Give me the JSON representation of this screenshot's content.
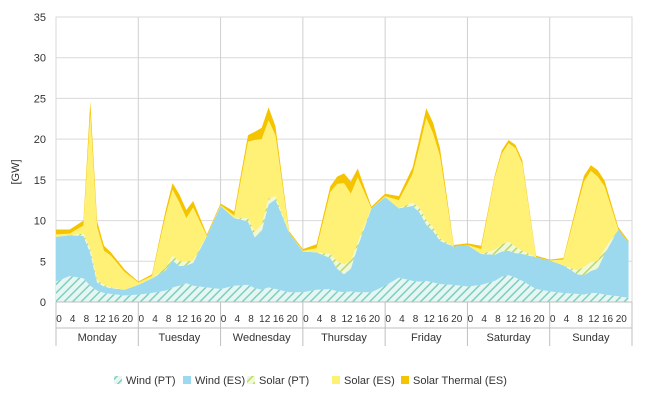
{
  "chart_data": {
    "type": "area",
    "stacked": true,
    "ylabel": "[GW]",
    "ylim": [
      0,
      35
    ],
    "yticks": [
      0,
      5,
      10,
      15,
      20,
      25,
      30,
      35
    ],
    "grid": true,
    "legend_position": "bottom",
    "hour_tick_labels": [
      "0",
      "4",
      "8",
      "12",
      "16",
      "20"
    ],
    "days": [
      "Monday",
      "Tuesday",
      "Wednesday",
      "Thursday",
      "Friday",
      "Saturday",
      "Sunday"
    ],
    "x_hours": [
      0,
      4,
      8,
      10,
      12,
      14,
      16,
      20,
      24,
      28,
      32,
      34,
      36,
      38,
      40,
      44,
      48,
      52,
      56,
      58,
      60,
      62,
      64,
      68,
      72,
      76,
      80,
      82,
      84,
      86,
      88,
      92,
      96,
      100,
      104,
      106,
      108,
      110,
      112,
      116,
      120,
      124,
      128,
      130,
      132,
      134,
      136,
      140,
      144,
      148,
      152,
      154,
      156,
      158,
      160,
      164,
      167
    ],
    "series": [
      {
        "name": "Wind (PT)",
        "color": "#7fcfc0",
        "hatched": true,
        "values": [
          2.5,
          3.2,
          2.9,
          2.0,
          1.4,
          1.1,
          1.0,
          0.8,
          0.9,
          1.1,
          1.4,
          1.8,
          2.0,
          2.3,
          2.0,
          1.8,
          1.6,
          2.0,
          2.1,
          1.7,
          1.5,
          1.8,
          1.6,
          1.2,
          1.2,
          1.5,
          1.6,
          1.3,
          1.2,
          1.3,
          1.2,
          1.2,
          2.0,
          3.0,
          2.6,
          2.5,
          2.6,
          2.4,
          2.2,
          2.1,
          1.9,
          2.1,
          2.6,
          3.1,
          3.3,
          3.0,
          2.6,
          1.6,
          1.3,
          1.1,
          1.0,
          0.9,
          1.1,
          1.1,
          0.9,
          0.7,
          0.5
        ]
      },
      {
        "name": "Wind (ES)",
        "color": "#9dd9ee",
        "hatched": false,
        "values": [
          5.5,
          5.0,
          5.2,
          4.0,
          1.0,
          0.8,
          0.7,
          0.7,
          1.2,
          1.8,
          2.5,
          3.3,
          2.4,
          2.2,
          2.8,
          6.3,
          10.2,
          8.3,
          7.8,
          6.2,
          7.2,
          10.2,
          11.0,
          7.3,
          5.0,
          4.6,
          3.8,
          2.8,
          2.2,
          2.8,
          5.6,
          10.3,
          10.9,
          8.5,
          9.2,
          8.5,
          6.9,
          6.3,
          5.3,
          4.7,
          5.1,
          3.8,
          3.2,
          3.1,
          3.0,
          3.0,
          3.3,
          3.9,
          3.8,
          3.4,
          2.4,
          2.4,
          2.7,
          3.0,
          5.0,
          8.2,
          6.8
        ]
      },
      {
        "name": "Solar (PT)",
        "color": "#c8e67f",
        "hatched": true,
        "values": [
          0,
          0,
          0.3,
          0.6,
          0.3,
          0.2,
          0.1,
          0,
          0,
          0,
          0.3,
          0.6,
          0.6,
          0.5,
          0.3,
          0,
          0,
          0,
          0.4,
          0.7,
          0.8,
          0.7,
          0.4,
          0,
          0,
          0,
          0.5,
          0.9,
          1.2,
          1.0,
          0.5,
          0,
          0,
          0,
          0.4,
          0.6,
          0.6,
          0.5,
          0.3,
          0,
          0,
          0,
          0.6,
          0.9,
          1.1,
          0.8,
          0.4,
          0,
          0,
          0,
          0.5,
          1.0,
          1.1,
          1.0,
          0.6,
          0,
          0
        ]
      },
      {
        "name": "Solar (ES)",
        "color": "#fff176",
        "hatched": false,
        "values": [
          0.3,
          0.2,
          1.0,
          16.5,
          6.5,
          4.2,
          3.9,
          2.2,
          0.3,
          0.3,
          6.5,
          8.1,
          7.2,
          5.3,
          6.5,
          0,
          0.1,
          0.3,
          9.4,
          11.3,
          10.5,
          9.6,
          7.5,
          0,
          0.1,
          0.5,
          7.6,
          9.5,
          10.0,
          8.2,
          8.0,
          0,
          0.1,
          1.0,
          3.5,
          7.5,
          12.5,
          11.5,
          10.1,
          0,
          0,
          0.6,
          8.9,
          11.1,
          12.1,
          12.1,
          10.7,
          0,
          0,
          0.7,
          7.8,
          10.5,
          11.2,
          10.3,
          7.7,
          0,
          0
        ]
      },
      {
        "name": "Solar Thermal (ES)",
        "color": "#f5c400",
        "hatched": false,
        "values": [
          0.6,
          0.5,
          0.6,
          1.5,
          0.7,
          0.6,
          0.4,
          0.3,
          0.1,
          0.2,
          0.6,
          0.8,
          1.0,
          1.0,
          0.8,
          0.2,
          0.2,
          0.5,
          0.8,
          1.0,
          1.4,
          1.6,
          1.1,
          0.2,
          0.2,
          0.5,
          0.7,
          0.9,
          1.2,
          1.5,
          1.1,
          0.2,
          0.3,
          0.5,
          0.8,
          1.0,
          1.2,
          1.3,
          1.0,
          0.2,
          0.2,
          0.4,
          0.3,
          0.4,
          0.4,
          0.4,
          0.4,
          0.2,
          0.1,
          0.2,
          0.5,
          0.7,
          0.7,
          0.8,
          0.7,
          0.3,
          0.2
        ]
      }
    ]
  }
}
